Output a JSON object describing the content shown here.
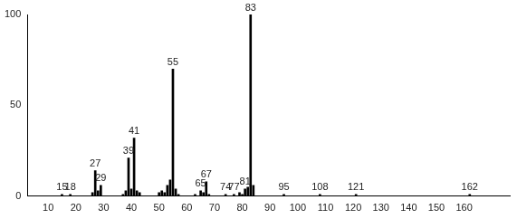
{
  "chart_data": {
    "type": "bar",
    "x": [
      15,
      18,
      26,
      27,
      28,
      29,
      37,
      38,
      39,
      40,
      41,
      42,
      43,
      50,
      51,
      52,
      53,
      54,
      55,
      56,
      57,
      63,
      65,
      66,
      67,
      68,
      74,
      77,
      79,
      80,
      81,
      82,
      83,
      84,
      95,
      108,
      121,
      162
    ],
    "values": [
      1,
      1,
      2,
      14,
      3,
      6,
      1,
      3,
      21,
      4,
      32,
      3,
      2,
      2,
      3,
      2,
      6,
      9,
      70,
      4,
      1,
      1,
      3,
      2,
      8,
      1,
      1,
      1,
      2,
      1,
      4,
      5,
      100,
      6,
      1,
      1,
      1,
      1
    ],
    "peak_labels": [
      15,
      18,
      null,
      27,
      null,
      29,
      null,
      null,
      39,
      null,
      41,
      null,
      null,
      null,
      null,
      null,
      null,
      null,
      55,
      null,
      null,
      null,
      65,
      null,
      67,
      null,
      74,
      77,
      null,
      null,
      81,
      null,
      83,
      null,
      95,
      108,
      121,
      162
    ],
    "color": "#000000",
    "xlim": [
      8,
      171
    ],
    "xticks": [
      10,
      20,
      30,
      40,
      50,
      60,
      70,
      80,
      90,
      100,
      110,
      120,
      130,
      140,
      150,
      160
    ],
    "ylim": [
      0,
      100
    ],
    "yticks": [
      0,
      50,
      100
    ],
    "grid": false
  }
}
